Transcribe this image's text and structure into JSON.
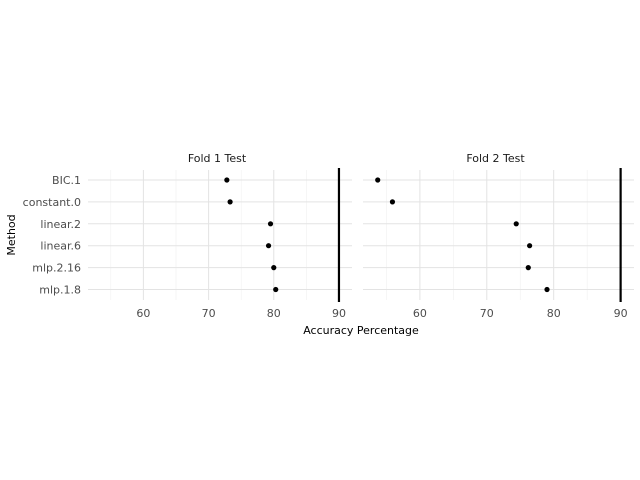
{
  "chart_data": {
    "type": "scatter",
    "xlabel": "Accuracy Percentage",
    "ylabel": "Method",
    "xlim": [
      51.5,
      92
    ],
    "x_ticks": [
      60,
      70,
      80,
      90
    ],
    "grid": true,
    "reference_line_x": 90,
    "categories": [
      "BIC.1",
      "constant.0",
      "linear.2",
      "linear.6",
      "mlp.2.16",
      "mlp.1.8"
    ],
    "panels": [
      {
        "title": "Fold 1 Test",
        "points": [
          {
            "method": "BIC.1",
            "x": 72.8
          },
          {
            "method": "constant.0",
            "x": 73.3
          },
          {
            "method": "linear.2",
            "x": 79.5
          },
          {
            "method": "linear.6",
            "x": 79.2
          },
          {
            "method": "mlp.2.16",
            "x": 80.0
          },
          {
            "method": "mlp.1.8",
            "x": 80.3
          }
        ]
      },
      {
        "title": "Fold 2 Test",
        "points": [
          {
            "method": "BIC.1",
            "x": 53.7
          },
          {
            "method": "constant.0",
            "x": 55.9
          },
          {
            "method": "linear.2",
            "x": 74.4
          },
          {
            "method": "linear.6",
            "x": 76.4
          },
          {
            "method": "mlp.2.16",
            "x": 76.2
          },
          {
            "method": "mlp.1.8",
            "x": 79.0
          }
        ]
      }
    ]
  }
}
